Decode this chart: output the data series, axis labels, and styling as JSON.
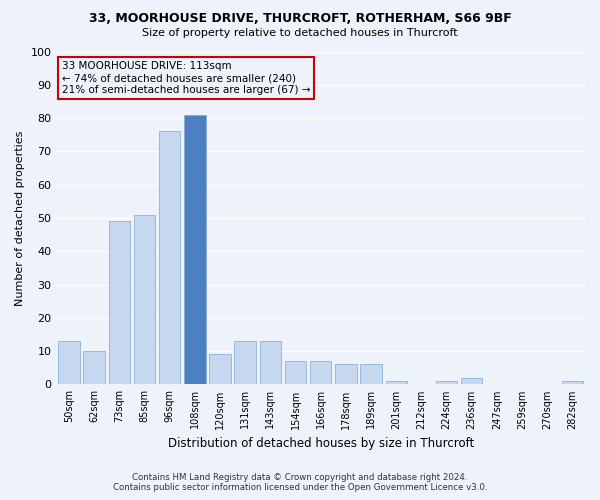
{
  "title1": "33, MOORHOUSE DRIVE, THURCROFT, ROTHERHAM, S66 9BF",
  "title2": "Size of property relative to detached houses in Thurcroft",
  "xlabel": "Distribution of detached houses by size in Thurcroft",
  "ylabel": "Number of detached properties",
  "footnote1": "Contains HM Land Registry data © Crown copyright and database right 2024.",
  "footnote2": "Contains public sector information licensed under the Open Government Licence v3.0.",
  "annotation_line1": "33 MOORHOUSE DRIVE: 113sqm",
  "annotation_line2": "← 74% of detached houses are smaller (240)",
  "annotation_line3": "21% of semi-detached houses are larger (67) →",
  "categories": [
    "50sqm",
    "62sqm",
    "73sqm",
    "85sqm",
    "96sqm",
    "108sqm",
    "120sqm",
    "131sqm",
    "143sqm",
    "154sqm",
    "166sqm",
    "178sqm",
    "189sqm",
    "201sqm",
    "212sqm",
    "224sqm",
    "236sqm",
    "247sqm",
    "259sqm",
    "270sqm",
    "282sqm"
  ],
  "values": [
    13,
    10,
    49,
    51,
    76,
    81,
    9,
    13,
    13,
    7,
    7,
    6,
    6,
    1,
    0,
    1,
    2,
    0,
    0,
    0,
    1
  ],
  "property_bin_index": 5,
  "bar_color_normal": "#c5d8f0",
  "bar_color_highlight": "#4e7fc0",
  "bar_edge_color": "#7aaad4",
  "annotation_box_edge_color": "#cc0000",
  "background_color": "#eef2fb",
  "ylim": [
    0,
    100
  ],
  "yticks": [
    0,
    10,
    20,
    30,
    40,
    50,
    60,
    70,
    80,
    90,
    100
  ]
}
